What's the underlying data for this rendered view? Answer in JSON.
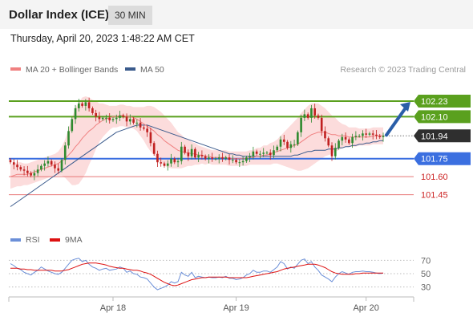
{
  "header": {
    "title": "Dollar Index (ICE)",
    "interval": "30 MIN",
    "timestamp": "Thursday, April 20, 2023 1:48:22 AM CET"
  },
  "colors": {
    "ma20": "#f08080",
    "bollinger_fill": "#fcdcdc",
    "ma50": "#3a5a8c",
    "resistance": "#5aa01e",
    "support_blue": "#3b6fe0",
    "support_red": "#e87878",
    "current": "#2f2f2f",
    "arrow": "#2a5ea8",
    "rsi": "#6b8fd8",
    "rsi_ma": "#dd1111",
    "candle_up": "#2f8a2f",
    "candle_down": "#c02020"
  },
  "chart_data": [
    {
      "type": "candlestick",
      "legend": [
        {
          "name": "MA 20 + Bollinger Bands",
          "color": "#f08080"
        },
        {
          "name": "MA 50",
          "color": "#3a5a8c"
        }
      ],
      "attribution": "Research © 2023 Trading Central",
      "x_ticks": [
        "Apr 18",
        "Apr 19",
        "Apr 20"
      ],
      "ylim": [
        101.28,
        102.35
      ],
      "levels": [
        {
          "value": 102.23,
          "label": "102.23",
          "kind": "resistance"
        },
        {
          "value": 102.1,
          "label": "102.10",
          "kind": "resistance"
        },
        {
          "value": 101.94,
          "label": "101.94",
          "kind": "current"
        },
        {
          "value": 101.75,
          "label": "101.75",
          "kind": "support_blue"
        },
        {
          "value": 101.6,
          "label": "101.60",
          "kind": "support_red"
        },
        {
          "value": 101.45,
          "label": "101.45",
          "kind": "support_red"
        }
      ],
      "forecast_arrow": {
        "from": 101.94,
        "to": 102.23
      },
      "close": [
        101.72,
        101.7,
        101.68,
        101.66,
        101.65,
        101.63,
        101.61,
        101.63,
        101.66,
        101.69,
        101.71,
        101.73,
        101.7,
        101.67,
        101.65,
        101.74,
        101.86,
        101.98,
        102.08,
        102.17,
        102.21,
        102.19,
        102.22,
        102.17,
        102.13,
        102.1,
        102.08,
        102.09,
        102.09,
        102.07,
        102.08,
        102.09,
        102.11,
        102.1,
        102.06,
        102.08,
        102.05,
        102.05,
        102.01,
        102.0,
        101.97,
        101.88,
        101.79,
        101.72,
        101.71,
        101.69,
        101.71,
        101.75,
        101.72,
        101.73,
        101.85,
        101.8,
        101.77,
        101.83,
        101.76,
        101.78,
        101.77,
        101.75,
        101.76,
        101.75,
        101.75,
        101.76,
        101.75,
        101.76,
        101.74,
        101.74,
        101.72,
        101.72,
        101.73,
        101.76,
        101.77,
        101.81,
        101.79,
        101.79,
        101.8,
        101.8,
        101.78,
        101.82,
        101.85,
        101.91,
        101.89,
        101.84,
        101.87,
        101.87,
        101.97,
        102.09,
        102.12,
        102.09,
        102.17,
        102.11,
        102.09,
        101.98,
        101.92,
        101.86,
        101.77,
        101.84,
        101.9,
        101.93,
        101.91,
        101.88,
        101.93,
        101.94,
        101.94,
        101.96,
        101.95,
        101.96,
        101.95,
        101.94,
        101.93,
        101.94
      ],
      "ma20": [
        101.6,
        101.61,
        101.62,
        101.62,
        101.62,
        101.62,
        101.63,
        101.64,
        101.65,
        101.66,
        101.67,
        101.68,
        101.69,
        101.7,
        101.71,
        101.73,
        101.75,
        101.78,
        101.81,
        101.85,
        101.88,
        101.92,
        101.95,
        101.98,
        102.0,
        102.03,
        102.05,
        102.07,
        102.08,
        102.09,
        102.1,
        102.1,
        102.11,
        102.11,
        102.1,
        102.1,
        102.09,
        102.08,
        102.06,
        102.04,
        102.02,
        102.0,
        101.98,
        101.95,
        101.93,
        101.9,
        101.88,
        101.86,
        101.84,
        101.82,
        101.81,
        101.8,
        101.8,
        101.79,
        101.79,
        101.78,
        101.78,
        101.77,
        101.77,
        101.76,
        101.76,
        101.76,
        101.76,
        101.76,
        101.75,
        101.75,
        101.75,
        101.75,
        101.75,
        101.75,
        101.76,
        101.76,
        101.77,
        101.77,
        101.78,
        101.78,
        101.79,
        101.8,
        101.81,
        101.82,
        101.83,
        101.84,
        101.85,
        101.86,
        101.87,
        101.89,
        101.91,
        101.93,
        101.95,
        101.96,
        101.97,
        101.97,
        101.97,
        101.96,
        101.95,
        101.95,
        101.94,
        101.94,
        101.94,
        101.93,
        101.93,
        101.93,
        101.93,
        101.93,
        101.93,
        101.93,
        101.94,
        101.94,
        101.94,
        101.94
      ],
      "band_width": [
        0.1,
        0.1,
        0.1,
        0.1,
        0.09,
        0.09,
        0.09,
        0.09,
        0.09,
        0.09,
        0.09,
        0.09,
        0.09,
        0.09,
        0.1,
        0.12,
        0.16,
        0.22,
        0.28,
        0.32,
        0.34,
        0.34,
        0.32,
        0.28,
        0.24,
        0.2,
        0.16,
        0.14,
        0.12,
        0.1,
        0.09,
        0.09,
        0.09,
        0.09,
        0.09,
        0.09,
        0.09,
        0.1,
        0.12,
        0.14,
        0.17,
        0.19,
        0.2,
        0.21,
        0.21,
        0.21,
        0.2,
        0.19,
        0.17,
        0.15,
        0.14,
        0.12,
        0.11,
        0.1,
        0.09,
        0.08,
        0.07,
        0.07,
        0.06,
        0.06,
        0.06,
        0.06,
        0.06,
        0.06,
        0.06,
        0.06,
        0.06,
        0.06,
        0.06,
        0.06,
        0.06,
        0.06,
        0.07,
        0.07,
        0.08,
        0.08,
        0.09,
        0.09,
        0.1,
        0.12,
        0.14,
        0.16,
        0.18,
        0.2,
        0.22,
        0.24,
        0.25,
        0.26,
        0.26,
        0.25,
        0.24,
        0.22,
        0.2,
        0.18,
        0.16,
        0.14,
        0.12,
        0.1,
        0.09,
        0.08,
        0.08,
        0.08,
        0.07,
        0.07,
        0.07,
        0.07,
        0.07,
        0.07,
        0.07,
        0.07
      ],
      "ma50": [
        101.35,
        101.37,
        101.39,
        101.41,
        101.43,
        101.45,
        101.47,
        101.49,
        101.51,
        101.53,
        101.55,
        101.57,
        101.59,
        101.61,
        101.63,
        101.65,
        101.67,
        101.69,
        101.71,
        101.73,
        101.75,
        101.77,
        101.79,
        101.81,
        101.83,
        101.85,
        101.87,
        101.89,
        101.91,
        101.93,
        101.95,
        101.97,
        101.98,
        101.99,
        102.0,
        102.01,
        102.02,
        102.03,
        102.03,
        102.03,
        102.03,
        102.02,
        102.01,
        102.0,
        101.99,
        101.98,
        101.97,
        101.96,
        101.95,
        101.94,
        101.93,
        101.92,
        101.91,
        101.9,
        101.89,
        101.88,
        101.87,
        101.86,
        101.85,
        101.84,
        101.83,
        101.82,
        101.81,
        101.8,
        101.79,
        101.79,
        101.78,
        101.78,
        101.77,
        101.77,
        101.77,
        101.77,
        101.77,
        101.77,
        101.77,
        101.77,
        101.77,
        101.77,
        101.77,
        101.77,
        101.77,
        101.77,
        101.77,
        101.78,
        101.78,
        101.79,
        101.8,
        101.81,
        101.81,
        101.82,
        101.82,
        101.82,
        101.82,
        101.83,
        101.83,
        101.83,
        101.84,
        101.84,
        101.85,
        101.85,
        101.86,
        101.86,
        101.87,
        101.87,
        101.88,
        101.88,
        101.89,
        101.89,
        101.9,
        101.9
      ]
    },
    {
      "type": "line",
      "legend": [
        {
          "name": "RSI",
          "color": "#6b8fd8"
        },
        {
          "name": "9MA",
          "color": "#dd1111"
        }
      ],
      "y_ticks": [
        70,
        50,
        30
      ],
      "ylim": [
        20,
        80
      ],
      "rsi": [
        65,
        62,
        58,
        56,
        52,
        50,
        48,
        52,
        55,
        60,
        57,
        54,
        52,
        50,
        49,
        52,
        58,
        64,
        70,
        72,
        73,
        68,
        70,
        64,
        60,
        58,
        55,
        57,
        58,
        55,
        56,
        57,
        60,
        58,
        52,
        54,
        50,
        49,
        45,
        44,
        42,
        36,
        30,
        26,
        28,
        30,
        33,
        38,
        36,
        38,
        52,
        48,
        46,
        52,
        44,
        46,
        45,
        44,
        45,
        44,
        44,
        45,
        44,
        46,
        43,
        43,
        41,
        42,
        44,
        48,
        50,
        55,
        52,
        52,
        54,
        54,
        52,
        56,
        60,
        68,
        65,
        57,
        60,
        58,
        64,
        70,
        72,
        65,
        68,
        60,
        55,
        48,
        45,
        42,
        38,
        45,
        50,
        53,
        51,
        49,
        52,
        53,
        53,
        54,
        53,
        53,
        52,
        51,
        50,
        51
      ],
      "rsi_ma": [
        58,
        58,
        58,
        57,
        57,
        56,
        56,
        55,
        55,
        55,
        55,
        55,
        55,
        54,
        54,
        54,
        55,
        56,
        58,
        60,
        62,
        64,
        65,
        66,
        66,
        66,
        65,
        64,
        63,
        61,
        60,
        59,
        58,
        58,
        57,
        56,
        55,
        55,
        54,
        52,
        51,
        49,
        46,
        43,
        40,
        37,
        35,
        33,
        32,
        33,
        35,
        37,
        39,
        41,
        42,
        43,
        44,
        44,
        45,
        45,
        45,
        45,
        45,
        45,
        44,
        44,
        44,
        44,
        44,
        44,
        45,
        46,
        47,
        48,
        49,
        50,
        51,
        52,
        53,
        55,
        57,
        58,
        59,
        60,
        61,
        62,
        63,
        64,
        64,
        64,
        63,
        61,
        59,
        56,
        53,
        51,
        50,
        49,
        49,
        49,
        49,
        50,
        50,
        51,
        51,
        51,
        51,
        51,
        51,
        51
      ]
    }
  ]
}
